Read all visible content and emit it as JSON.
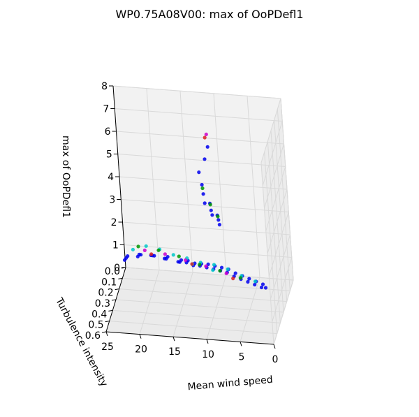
{
  "chart_data": {
    "type": "scatter",
    "projection": "3d",
    "title": "WP0.75A08V00: max of OoPDefl1",
    "xlabel": "Mean wind speed",
    "ylabel": "Turbulence intensity",
    "zlabel": "max of OoPDefl1",
    "x_ticks": [
      "25",
      "20",
      "15",
      "10",
      "5",
      "0"
    ],
    "y_ticks": [
      "0.0",
      "0.1",
      "0.2",
      "0.3",
      "0.4",
      "0.5",
      "0.6"
    ],
    "z_ticks": [
      "0",
      "1",
      "2",
      "3",
      "4",
      "5",
      "6",
      "7",
      "8"
    ],
    "xlim": [
      25,
      0
    ],
    "ylim": [
      0.0,
      0.6
    ],
    "zlim": [
      0,
      8
    ],
    "grid": true,
    "colors": {
      "blue": "#0000ee",
      "cyan": "#00c8c8",
      "green": "#009900",
      "magenta": "#cc00cc",
      "red": "#dd2222",
      "pane": "#f2f2f2",
      "grid": "#d9d9d9"
    },
    "series": [
      {
        "color": "#0000ee",
        "points": [
          [
            24,
            0.1,
            1.0
          ],
          [
            24,
            0.14,
            1.1
          ],
          [
            24,
            0.18,
            1.2
          ],
          [
            22,
            0.1,
            1.1
          ],
          [
            22,
            0.14,
            1.3
          ],
          [
            22,
            0.18,
            1.4
          ],
          [
            20,
            0.1,
            1.1
          ],
          [
            20,
            0.14,
            1.3
          ],
          [
            20,
            0.18,
            1.5
          ],
          [
            18,
            0.1,
            1.1
          ],
          [
            18,
            0.14,
            1.2
          ],
          [
            18,
            0.18,
            1.4
          ],
          [
            16,
            0.1,
            1.0
          ],
          [
            16,
            0.14,
            1.1
          ],
          [
            16,
            0.18,
            1.3
          ],
          [
            15,
            0.1,
            1.0
          ],
          [
            15,
            0.14,
            1.1
          ],
          [
            14,
            0.1,
            0.9
          ],
          [
            14,
            0.14,
            1.0
          ],
          [
            13,
            0.1,
            0.9
          ],
          [
            13,
            0.14,
            1.0
          ],
          [
            12,
            0.1,
            0.9
          ],
          [
            12,
            0.14,
            0.95
          ],
          [
            11,
            0.1,
            0.85
          ],
          [
            11,
            0.14,
            0.9
          ],
          [
            10,
            0.1,
            0.8
          ],
          [
            10,
            0.14,
            0.85
          ],
          [
            9,
            0.1,
            0.75
          ],
          [
            9,
            0.14,
            0.8
          ],
          [
            8,
            0.1,
            0.6
          ],
          [
            8,
            0.14,
            0.65
          ],
          [
            7,
            0.1,
            0.5
          ],
          [
            7,
            0.14,
            0.55
          ],
          [
            6,
            0.1,
            0.4
          ],
          [
            6,
            0.14,
            0.45
          ],
          [
            5,
            0.1,
            0.3
          ],
          [
            5,
            0.14,
            0.35
          ],
          [
            4,
            0.1,
            0.2
          ],
          [
            4,
            0.14,
            0.25
          ],
          [
            3.5,
            0.12,
            0.15
          ],
          [
            12,
            0.08,
            3.5
          ],
          [
            12,
            0.1,
            4.0
          ],
          [
            12,
            0.12,
            4.5
          ],
          [
            11,
            0.08,
            3.0
          ],
          [
            11,
            0.1,
            3.3
          ],
          [
            11,
            0.12,
            3.7
          ],
          [
            10,
            0.08,
            2.6
          ],
          [
            10,
            0.1,
            2.9
          ],
          [
            10,
            0.12,
            3.2
          ],
          [
            11.5,
            0.09,
            5.5
          ],
          [
            11,
            0.08,
            6.0
          ],
          [
            12.5,
            0.09,
            4.9
          ]
        ]
      },
      {
        "color": "#00c8c8",
        "points": [
          [
            23,
            0.12,
            1.4
          ],
          [
            21,
            0.12,
            1.6
          ],
          [
            19,
            0.12,
            1.5
          ],
          [
            17,
            0.12,
            1.3
          ],
          [
            15,
            0.12,
            1.2
          ],
          [
            13,
            0.12,
            1.05
          ],
          [
            11,
            0.12,
            1.0
          ],
          [
            9,
            0.12,
            0.85
          ],
          [
            7,
            0.12,
            0.6
          ],
          [
            5,
            0.12,
            0.4
          ],
          [
            11,
            0.16,
            0.95
          ],
          [
            14,
            0.16,
            1.15
          ]
        ]
      },
      {
        "color": "#009900",
        "points": [
          [
            22,
            0.15,
            1.7
          ],
          [
            19,
            0.15,
            1.6
          ],
          [
            16,
            0.15,
            1.4
          ],
          [
            13,
            0.15,
            1.1
          ],
          [
            10,
            0.15,
            0.9
          ],
          [
            7,
            0.15,
            0.65
          ],
          [
            12,
            0.11,
            4.3
          ],
          [
            11,
            0.11,
            3.6
          ],
          [
            10,
            0.11,
            3.1
          ]
        ]
      },
      {
        "color": "#cc00cc",
        "points": [
          [
            21,
            0.16,
            1.6
          ],
          [
            18,
            0.16,
            1.5
          ],
          [
            15,
            0.16,
            1.3
          ],
          [
            12,
            0.16,
            1.1
          ],
          [
            9,
            0.16,
            0.85
          ],
          [
            11,
            0.09,
            6.6
          ]
        ]
      },
      {
        "color": "#dd2222",
        "points": [
          [
            20,
            0.17,
            1.5
          ],
          [
            14,
            0.17,
            1.2
          ],
          [
            8,
            0.17,
            0.7
          ],
          [
            11.2,
            0.1,
            6.5
          ]
        ]
      }
    ]
  }
}
